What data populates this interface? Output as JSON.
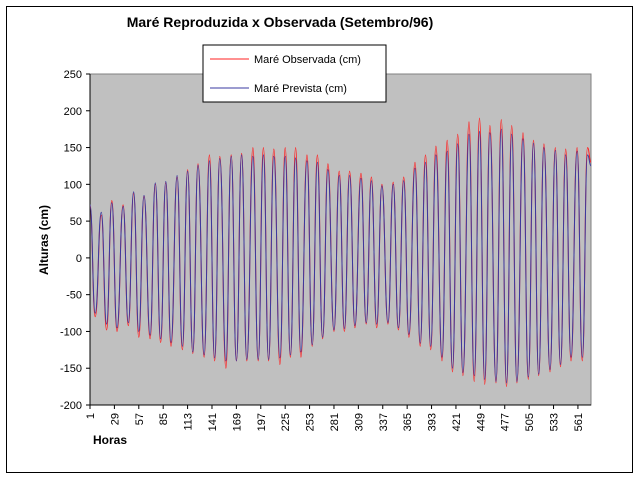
{
  "chart_data": {
    "type": "line",
    "title": "Maré Reproduzida x Observada (Setembro/96)",
    "xlabel": "Horas",
    "ylabel": "Alturas (cm)",
    "xlim": [
      1,
      576
    ],
    "ylim": [
      -200,
      250
    ],
    "yticks": [
      -200,
      -150,
      -100,
      -50,
      0,
      50,
      100,
      150,
      200,
      250
    ],
    "xticks": [
      1,
      29,
      57,
      85,
      113,
      141,
      169,
      197,
      225,
      253,
      281,
      309,
      337,
      365,
      393,
      421,
      449,
      477,
      505,
      533,
      561
    ],
    "legend_position": "top-center",
    "plot_background": "#c0c0c0",
    "series": [
      {
        "name": "Maré Observada (cm)",
        "color": "#ff2020",
        "x": [
          1,
          7,
          14,
          20,
          26,
          32,
          39,
          45,
          51,
          57,
          63,
          70,
          76,
          82,
          88,
          94,
          101,
          107,
          113,
          119,
          125,
          132,
          138,
          144,
          150,
          157,
          163,
          169,
          175,
          181,
          188,
          194,
          200,
          206,
          212,
          219,
          225,
          231,
          237,
          243,
          250,
          256,
          262,
          268,
          274,
          281,
          287,
          293,
          299,
          305,
          312,
          318,
          324,
          330,
          336,
          343,
          349,
          355,
          361,
          367,
          374,
          380,
          386,
          392,
          398,
          405,
          411,
          417,
          423,
          429,
          436,
          442,
          448,
          454,
          460,
          467,
          473,
          479,
          485,
          491,
          498,
          504,
          510,
          516,
          522,
          529,
          535,
          541,
          547,
          553,
          560,
          566,
          572,
          576
        ],
        "y": [
          70,
          -80,
          58,
          -98,
          78,
          -100,
          72,
          -92,
          88,
          -108,
          84,
          -110,
          100,
          -115,
          102,
          -120,
          110,
          -125,
          120,
          -130,
          128,
          -135,
          140,
          -140,
          138,
          -150,
          140,
          -140,
          142,
          -140,
          150,
          -140,
          150,
          -140,
          148,
          -145,
          150,
          -135,
          150,
          -135,
          140,
          -120,
          140,
          -110,
          128,
          -100,
          118,
          -100,
          118,
          -95,
          115,
          -90,
          110,
          -95,
          100,
          -90,
          103,
          -98,
          110,
          -108,
          130,
          -120,
          140,
          -125,
          152,
          -140,
          160,
          -155,
          168,
          -160,
          185,
          -168,
          190,
          -172,
          180,
          -170,
          188,
          -175,
          180,
          -170,
          170,
          -165,
          160,
          -160,
          155,
          -155,
          150,
          -148,
          148,
          -140,
          150,
          -140,
          150,
          130
        ]
      },
      {
        "name": "Maré Prevista (cm)",
        "color": "#3a3aa0",
        "x": [
          1,
          7,
          14,
          20,
          26,
          32,
          39,
          45,
          51,
          57,
          63,
          70,
          76,
          82,
          88,
          94,
          101,
          107,
          113,
          119,
          125,
          132,
          138,
          144,
          150,
          157,
          163,
          169,
          175,
          181,
          188,
          194,
          200,
          206,
          212,
          219,
          225,
          231,
          237,
          243,
          250,
          256,
          262,
          268,
          274,
          281,
          287,
          293,
          299,
          305,
          312,
          318,
          324,
          330,
          336,
          343,
          349,
          355,
          361,
          367,
          374,
          380,
          386,
          392,
          398,
          405,
          411,
          417,
          423,
          429,
          436,
          442,
          448,
          454,
          460,
          467,
          473,
          479,
          485,
          491,
          498,
          504,
          510,
          516,
          522,
          529,
          535,
          541,
          547,
          553,
          560,
          566,
          572,
          576
        ],
        "y": [
          72,
          -75,
          62,
          -90,
          75,
          -95,
          70,
          -88,
          90,
          -100,
          85,
          -105,
          102,
          -110,
          104,
          -115,
          112,
          -120,
          118,
          -128,
          126,
          -132,
          132,
          -136,
          135,
          -140,
          138,
          -140,
          140,
          -138,
          138,
          -138,
          140,
          -138,
          138,
          -136,
          138,
          -132,
          136,
          -128,
          132,
          -118,
          130,
          -108,
          120,
          -98,
          112,
          -96,
          112,
          -92,
          108,
          -88,
          105,
          -90,
          98,
          -88,
          100,
          -95,
          105,
          -104,
          122,
          -116,
          130,
          -120,
          140,
          -135,
          145,
          -150,
          155,
          -156,
          168,
          -160,
          172,
          -165,
          170,
          -168,
          175,
          -170,
          168,
          -168,
          162,
          -162,
          156,
          -158,
          150,
          -152,
          146,
          -145,
          140,
          -135,
          145,
          -135,
          140,
          125
        ]
      }
    ]
  }
}
